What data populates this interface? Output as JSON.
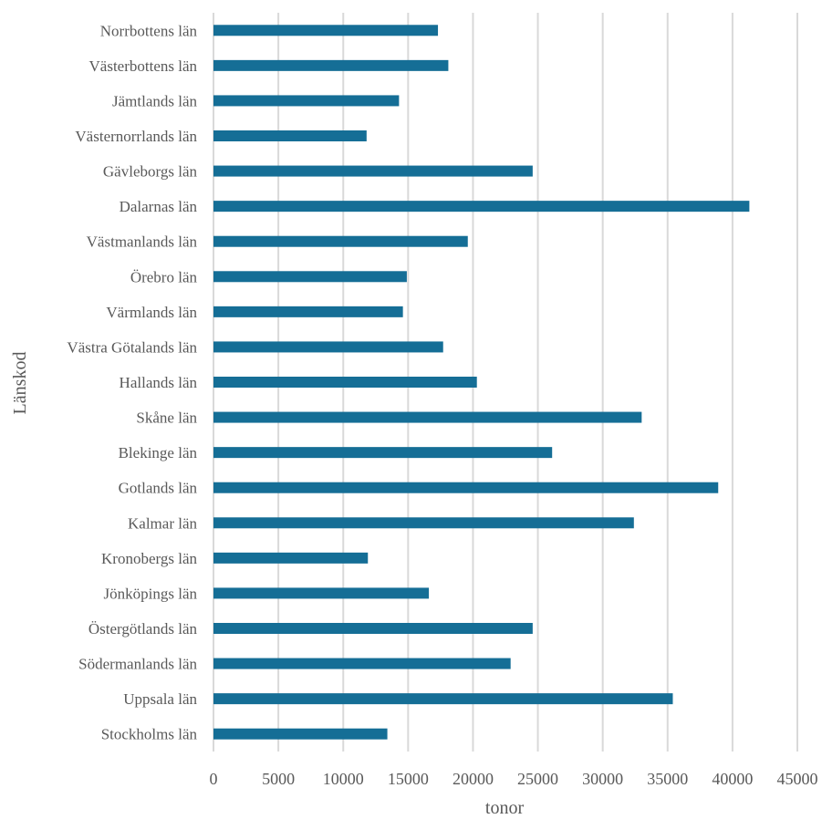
{
  "chart_data": {
    "type": "bar",
    "orientation": "horizontal",
    "title": "",
    "xlabel": "tonor",
    "ylabel": "Länskod",
    "xlim": [
      0,
      45000
    ],
    "xticks": [
      0,
      5000,
      10000,
      15000,
      20000,
      25000,
      30000,
      35000,
      40000,
      45000
    ],
    "grid": "vertical",
    "legend": "none",
    "bar_color": "#156E96",
    "categories": [
      "Norrbottens län",
      "Västerbottens län",
      "Jämtlands län",
      "Västernorrlands län",
      "Gävleborgs län",
      "Dalarnas län",
      "Västmanlands län",
      "Örebro län",
      "Värmlands län",
      "Västra Götalands län",
      "Hallands län",
      "Skåne län",
      "Blekinge län",
      "Gotlands län",
      "Kalmar län",
      "Kronobergs län",
      "Jönköpings län",
      "Östergötlands län",
      "Södermanlands län",
      "Uppsala län",
      "Stockholms län"
    ],
    "values": [
      17300,
      18100,
      14300,
      11800,
      24600,
      41300,
      19600,
      14900,
      14600,
      17700,
      20300,
      33000,
      26100,
      38900,
      32400,
      11900,
      16600,
      24600,
      22900,
      35400,
      13400
    ]
  }
}
